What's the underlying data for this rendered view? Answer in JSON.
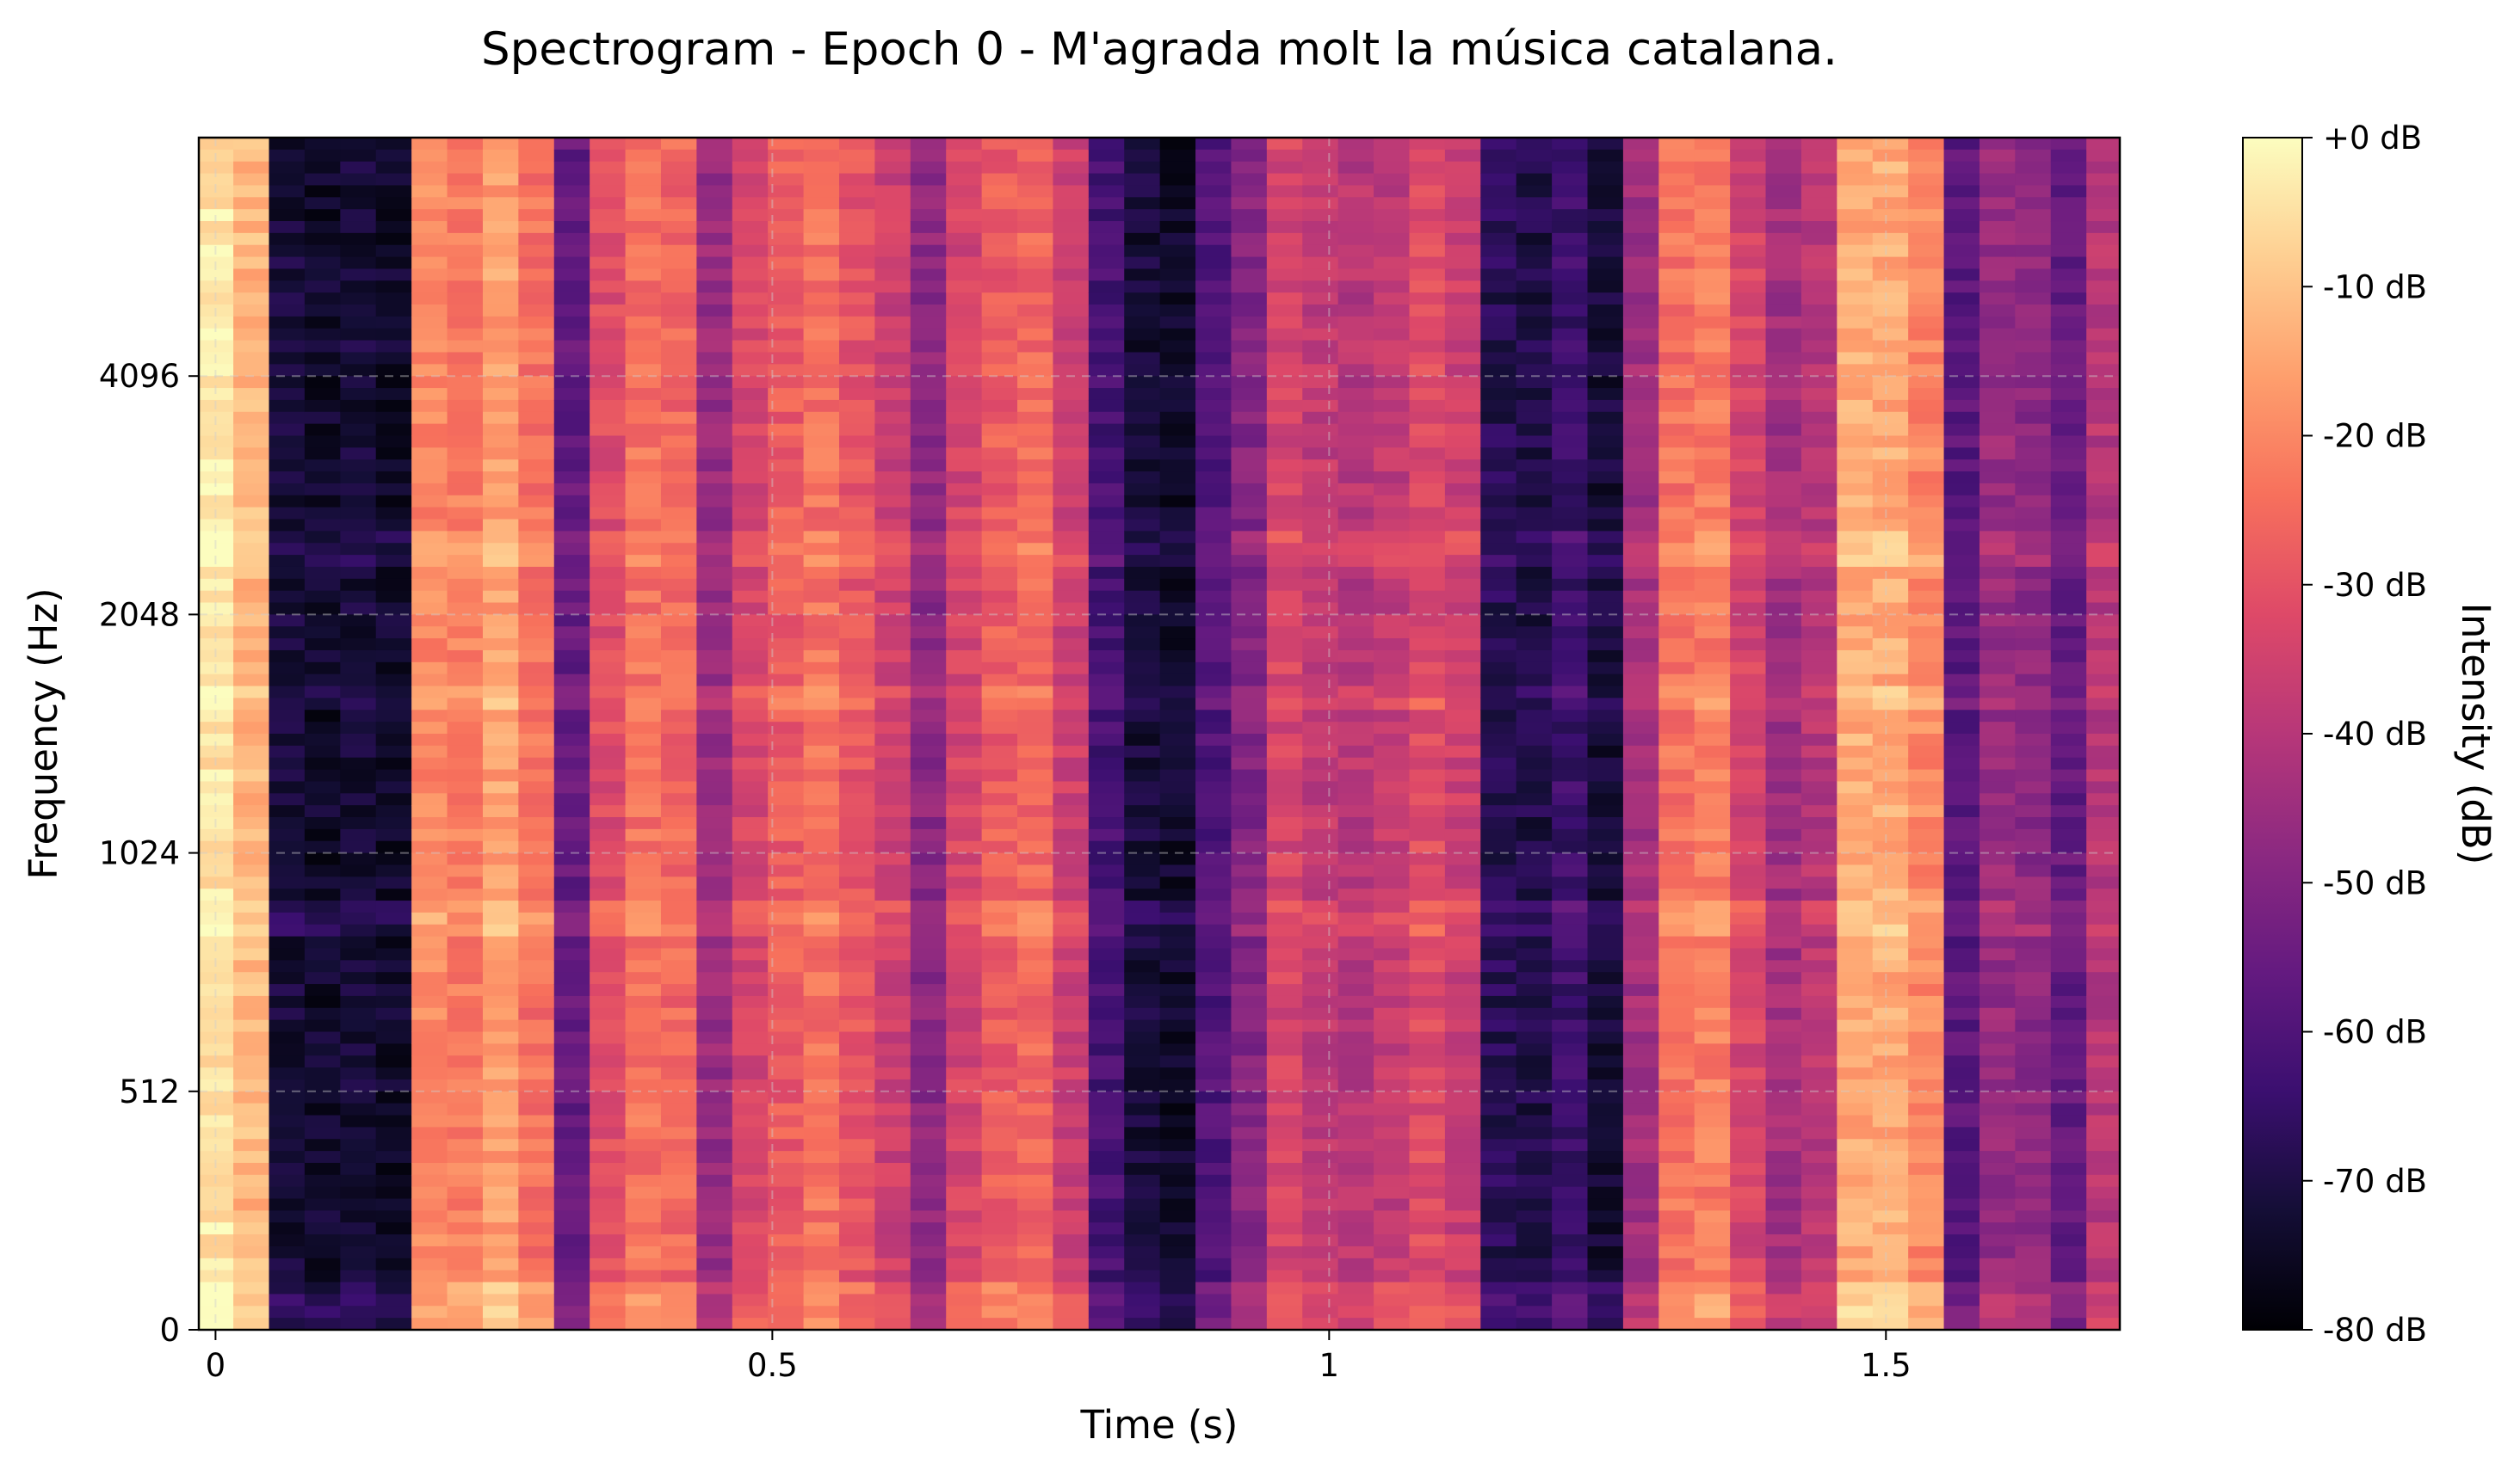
{
  "chart_data": {
    "type": "heatmap",
    "title": "Spectrogram - Epoch 0 - M'agrada molt la música catalana.",
    "xlabel": "Time (s)",
    "ylabel": "Frequency (Hz)",
    "colorbar_label": "Intensity (dB)",
    "colormap": "magma",
    "colormap_stops": [
      "#000004",
      "#140e36",
      "#3b0f70",
      "#641a80",
      "#8c2981",
      "#b73779",
      "#de4968",
      "#f7705c",
      "#fe9f6d",
      "#fecf92",
      "#fcfdbf"
    ],
    "xlim": [
      -0.015,
      1.71
    ],
    "ylim": [
      0,
      8192
    ],
    "y_scale": "symlog",
    "x_ticks": [
      0,
      0.5,
      1,
      1.5
    ],
    "x_tick_labels": [
      "0",
      "0.5",
      "1",
      "1.5"
    ],
    "y_ticks": [
      0,
      512,
      1024,
      2048,
      4096
    ],
    "y_tick_labels": [
      "0",
      "512",
      "1024",
      "2048",
      "4096"
    ],
    "color_range_db": [
      -80,
      0
    ],
    "colorbar_ticks": [
      0,
      -10,
      -20,
      -30,
      -40,
      -50,
      -60,
      -70,
      -80
    ],
    "colorbar_tick_labels": [
      "+0 dB",
      "-10 dB",
      "-20 dB",
      "-30 dB",
      "-40 dB",
      "-50 dB",
      "-60 dB",
      "-70 dB",
      "-80 dB"
    ],
    "grid": true,
    "frame_duration_s": 0.032,
    "frame_start_s": -0.016,
    "frequency_bins": 100,
    "frame_intensity_db": [
      -4,
      -12,
      -72,
      -74,
      -72,
      -74,
      -20,
      -22,
      -16,
      -24,
      -56,
      -32,
      -24,
      -26,
      -46,
      -34,
      -28,
      -24,
      -30,
      -36,
      -48,
      -34,
      -28,
      -26,
      -36,
      -62,
      -72,
      -74,
      -60,
      -50,
      -34,
      -38,
      -40,
      -38,
      -32,
      -36,
      -68,
      -70,
      -64,
      -72,
      -44,
      -24,
      -22,
      -34,
      -44,
      -40,
      -14,
      -14,
      -20,
      -58,
      -46,
      -48,
      -56,
      -40,
      -40,
      -22,
      -24,
      -40
    ],
    "band_modulation": [
      {
        "bin_start": 0,
        "bin_end": 3,
        "offset_db": 6
      },
      {
        "bin_start": 33,
        "bin_end": 35,
        "offset_db": 5
      },
      {
        "bin_start": 52,
        "bin_end": 53,
        "offset_db": 4
      },
      {
        "bin_start": 64,
        "bin_end": 66,
        "offset_db": 4
      }
    ]
  }
}
